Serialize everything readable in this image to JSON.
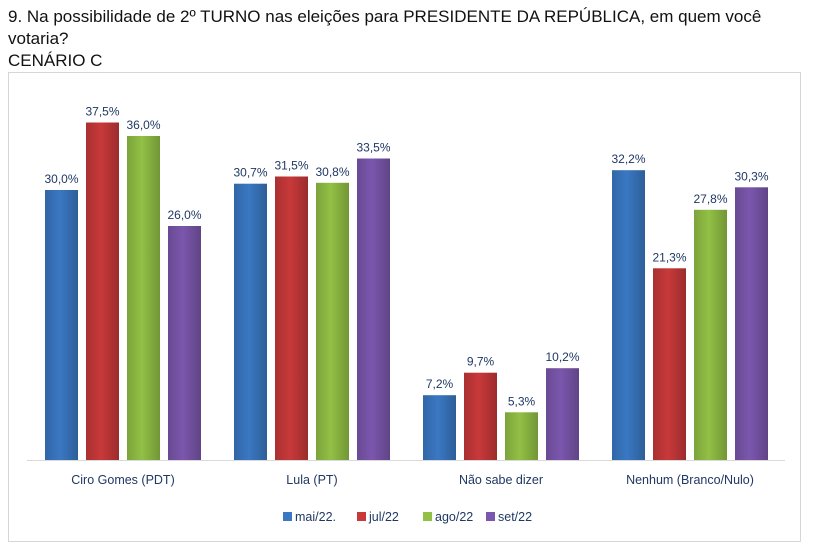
{
  "title_line1": "9. Na possibilidade de 2º TURNO nas eleições para PRESIDENTE DA REPÚBLICA, em quem você votaria?",
  "title_line2": "CENÁRIO C",
  "chart_data": {
    "type": "bar",
    "categories": [
      "Ciro Gomes (PDT)",
      "Lula (PT)",
      "Não sabe dizer",
      "Nenhum (Branco/Nulo)"
    ],
    "series": [
      {
        "name": "mai/22.",
        "color": "#3a78c3",
        "values": [
          30.0,
          30.7,
          7.2,
          32.2
        ],
        "labels": [
          "30,0%",
          "30,7%",
          "7,2%",
          "32,2%"
        ]
      },
      {
        "name": "jul/22",
        "color": "#c8393a",
        "values": [
          37.5,
          31.5,
          9.7,
          21.3
        ],
        "labels": [
          "37,5%",
          "31,5%",
          "9,7%",
          "21,3%"
        ]
      },
      {
        "name": "ago/22",
        "color": "#92c045",
        "values": [
          36.0,
          30.8,
          5.3,
          27.8
        ],
        "labels": [
          "36,0%",
          "30,8%",
          "5,3%",
          "27,8%"
        ]
      },
      {
        "name": "set/22",
        "color": "#7b57ad",
        "values": [
          26.0,
          33.5,
          10.2,
          30.3
        ],
        "labels": [
          "26,0%",
          "33,5%",
          "10,2%",
          "30,3%"
        ]
      }
    ],
    "ylim": [
      0,
      40
    ],
    "grid": false,
    "legend_position": "bottom"
  }
}
